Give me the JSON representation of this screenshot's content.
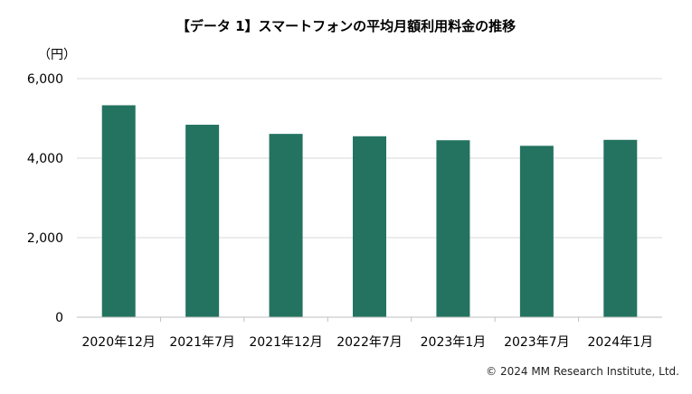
{
  "chart_data": {
    "type": "bar",
    "title": "【データ 1】スマートフォンの平均月額利用料金の推移",
    "ylabel": "（円）",
    "categories": [
      "2020年12月",
      "2021年7月",
      "2021年12月",
      "2022年7月",
      "2023年1月",
      "2023年7月",
      "2024年1月"
    ],
    "values": [
      5330,
      4840,
      4610,
      4550,
      4450,
      4310,
      4460
    ],
    "ylim": [
      0,
      6000
    ],
    "yticks": [
      "0",
      "2,000",
      "4,000",
      "6,000"
    ],
    "grid": true,
    "bar_color": "#237360"
  },
  "footer": {
    "copyright": "© 2024 MM Research Institute, Ltd."
  }
}
